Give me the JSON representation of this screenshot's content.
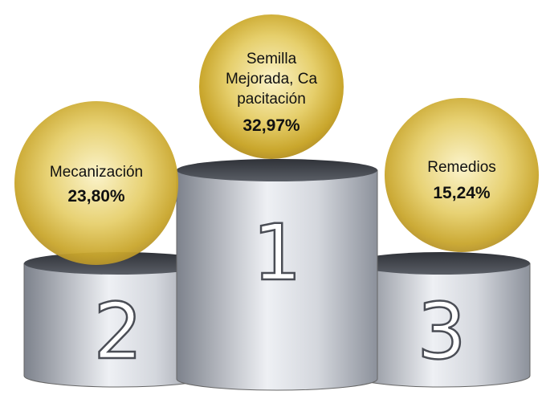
{
  "podium": [
    {
      "rank": "1",
      "label_lines": [
        "Semilla",
        "Mejorada, Ca",
        "pacitación"
      ],
      "value": "32,97%"
    },
    {
      "rank": "2",
      "label_lines": [
        "Mecanización"
      ],
      "value": "23,80%"
    },
    {
      "rank": "3",
      "label_lines": [
        "Remedios"
      ],
      "value": "15,24%"
    }
  ]
}
